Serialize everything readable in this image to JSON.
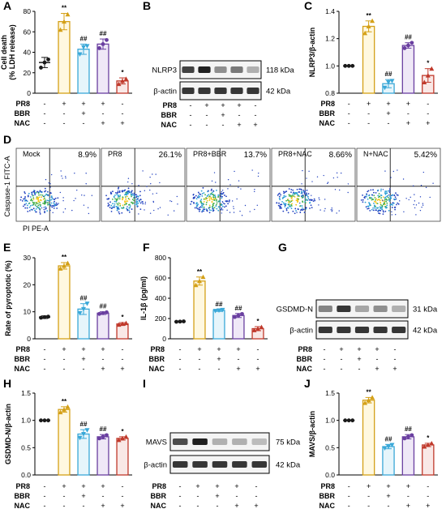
{
  "panel_labels": {
    "A": "A",
    "B": "B",
    "C": "C",
    "D": "D",
    "E": "E",
    "F": "F",
    "G": "G",
    "H": "H",
    "I": "I",
    "J": "J"
  },
  "treatment_rows": [
    {
      "name": "PR8",
      "signs": [
        "-",
        "+",
        "+",
        "+",
        "-"
      ]
    },
    {
      "name": "BBR",
      "signs": [
        "-",
        "-",
        "+",
        "-",
        "-"
      ]
    },
    {
      "name": "NAC",
      "signs": [
        "-",
        "-",
        "-",
        "+",
        "+"
      ]
    }
  ],
  "colors": {
    "control": "#1a1a1a",
    "pr8": "#d4a017",
    "bbr": "#3aa8d8",
    "nac": "#6a3fa0",
    "nnac": "#c0392b"
  },
  "chart_data": [
    {
      "panel": "A",
      "type": "bar",
      "ylabel": "Cell death\n(% LDH release)",
      "ylim": [
        0,
        80
      ],
      "yticks": [
        0,
        20,
        40,
        60,
        80
      ],
      "values": [
        30,
        70,
        43,
        48,
        12
      ],
      "errors": [
        5,
        8,
        5,
        5,
        3
      ],
      "points": [
        [
          25,
          30,
          33
        ],
        [
          62,
          70,
          77
        ],
        [
          38,
          45,
          46
        ],
        [
          44,
          48,
          52
        ],
        [
          9,
          12,
          14
        ]
      ],
      "annotations": [
        "",
        "**",
        "##",
        "##",
        "*"
      ]
    },
    {
      "panel": "C",
      "type": "bar",
      "ylabel": "NLRP3/β-actin",
      "ylim": [
        0.8,
        1.4
      ],
      "yticks": [
        0.8,
        1.0,
        1.2,
        1.4
      ],
      "values": [
        1.0,
        1.29,
        0.87,
        1.15,
        0.93
      ],
      "errors": [
        0,
        0.04,
        0.03,
        0.02,
        0.05
      ],
      "points": [
        [
          1.0,
          1.0,
          1.0
        ],
        [
          1.24,
          1.29,
          1.33
        ],
        [
          0.84,
          0.88,
          0.89
        ],
        [
          1.13,
          1.15,
          1.17
        ],
        [
          0.88,
          0.93,
          0.98
        ]
      ],
      "annotations": [
        "",
        "**",
        "##",
        "##",
        "*"
      ]
    },
    {
      "panel": "E",
      "type": "bar",
      "ylabel": "Rate of pyroptotic (%)",
      "ylim": [
        0,
        30
      ],
      "yticks": [
        0,
        10,
        20,
        30
      ],
      "values": [
        8,
        27,
        11,
        9.5,
        5.5
      ],
      "errors": [
        0.5,
        1.2,
        2,
        0.5,
        0.5
      ],
      "points": [
        [
          7.8,
          8,
          8.2
        ],
        [
          26,
          27,
          28
        ],
        [
          9.5,
          11,
          13
        ],
        [
          9.2,
          9.5,
          9.8
        ],
        [
          5.2,
          5.5,
          5.8
        ]
      ],
      "annotations": [
        "",
        "**",
        "##",
        "##",
        "*"
      ]
    },
    {
      "panel": "F",
      "type": "bar",
      "ylabel": "IL-1β (pg/ml)",
      "ylim": [
        0,
        800
      ],
      "yticks": [
        0,
        200,
        400,
        600,
        800
      ],
      "values": [
        170,
        570,
        280,
        230,
        100
      ],
      "errors": [
        5,
        40,
        10,
        20,
        20
      ],
      "points": [
        [
          168,
          170,
          172
        ],
        [
          530,
          570,
          610
        ],
        [
          275,
          280,
          285
        ],
        [
          215,
          230,
          245
        ],
        [
          85,
          100,
          115
        ]
      ],
      "annotations": [
        "",
        "**",
        "##",
        "##",
        "*"
      ]
    },
    {
      "panel": "H",
      "type": "bar",
      "ylabel": "GSDMD-N/β-actin",
      "ylim": [
        0,
        1.5
      ],
      "yticks": [
        0.0,
        0.5,
        1.0,
        1.5
      ],
      "values": [
        1.0,
        1.2,
        0.75,
        0.7,
        0.67
      ],
      "errors": [
        0,
        0.05,
        0.08,
        0.04,
        0.03
      ],
      "points": [
        [
          1.0,
          1.0,
          1.0
        ],
        [
          1.15,
          1.2,
          1.25
        ],
        [
          0.68,
          0.75,
          0.82
        ],
        [
          0.67,
          0.7,
          0.73
        ],
        [
          0.64,
          0.67,
          0.7
        ]
      ],
      "annotations": [
        "",
        "**",
        "##",
        "##",
        "*"
      ]
    },
    {
      "panel": "J",
      "type": "bar",
      "ylabel": "MAVS/β-actin",
      "ylim": [
        0,
        1.5
      ],
      "yticks": [
        0.0,
        0.5,
        1.0,
        1.5
      ],
      "values": [
        1.0,
        1.37,
        0.52,
        0.7,
        0.55
      ],
      "errors": [
        0,
        0.05,
        0.04,
        0.04,
        0.03
      ],
      "points": [
        [
          1.0,
          1.0,
          1.0
        ],
        [
          1.32,
          1.37,
          1.42
        ],
        [
          0.49,
          0.52,
          0.55
        ],
        [
          0.67,
          0.7,
          0.73
        ],
        [
          0.52,
          0.55,
          0.58
        ]
      ],
      "annotations": [
        "",
        "**",
        "##",
        "##",
        "*"
      ]
    }
  ],
  "blots": {
    "B": {
      "rows": [
        {
          "label": "NLRP3",
          "size": "118 kDa"
        },
        {
          "label": "β-actin",
          "size": "42 kDa"
        }
      ]
    },
    "G": {
      "rows": [
        {
          "label": "GSDMD-N",
          "size": "31 kDa"
        },
        {
          "label": "β-actin",
          "size": "42 kDa"
        }
      ]
    },
    "I": {
      "rows": [
        {
          "label": "MAVS",
          "size": "75 kDa"
        },
        {
          "label": "β-actin",
          "size": "42 kDa"
        }
      ]
    }
  },
  "flow": {
    "ylabel": "Caspase-1 FITC-A",
    "xlabel": "PI PE-A",
    "plots": [
      {
        "title": "Mock",
        "pct": "8.9%"
      },
      {
        "title": "PR8",
        "pct": "26.1%"
      },
      {
        "title": "PR8+BBR",
        "pct": "13.7%"
      },
      {
        "title": "PR8+NAC",
        "pct": "8.66%"
      },
      {
        "title": "N+NAC",
        "pct": "5.42%"
      }
    ]
  }
}
